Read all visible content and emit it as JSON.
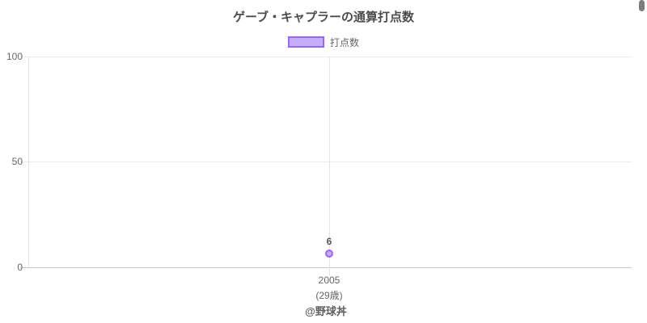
{
  "page": {
    "background": "#ffffff"
  },
  "scrollbar": {
    "thumb_color": "#7d7d7d"
  },
  "chart_data": {
    "type": "line",
    "title": "ゲーブ・キャプラーの通算打点数",
    "legend": {
      "position": "top",
      "entries": [
        {
          "label": "打点数",
          "swatch_fill": "#c6adfa",
          "swatch_border": "#9966ff"
        }
      ]
    },
    "categories": [
      "2005"
    ],
    "category_sublabels": [
      "(29歳)"
    ],
    "series": [
      {
        "name": "打点数",
        "values": [
          6
        ],
        "point_fill": "#c7a9fb",
        "point_border": "#9966ff"
      }
    ],
    "point_labels": [
      "6"
    ],
    "xlabel": "",
    "ylabel": "",
    "ylim": [
      0,
      100
    ],
    "yticks": [
      "0",
      "50",
      "100"
    ],
    "grid": true,
    "attribution": "@野球丼"
  }
}
